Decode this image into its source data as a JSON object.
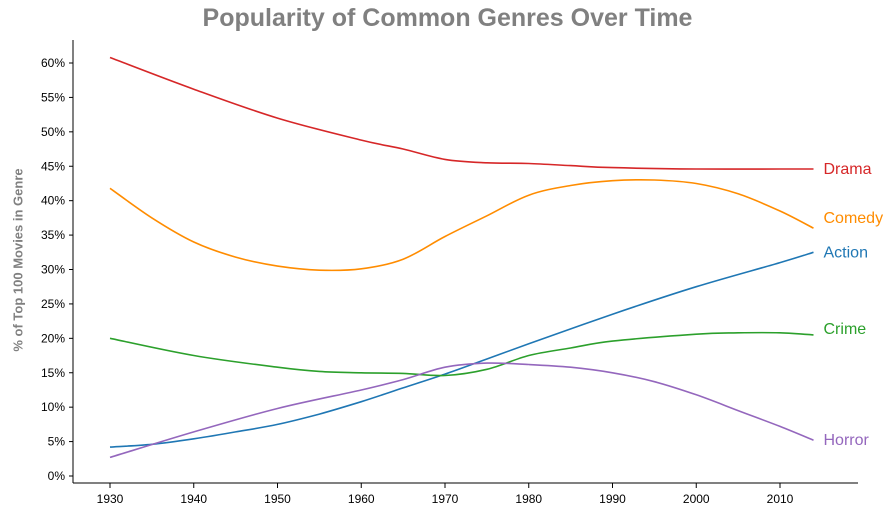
{
  "chart_data": {
    "type": "line",
    "title": "Popularity of Common Genres Over Time",
    "xlabel": "",
    "ylabel": "% of Top 100 Movies in Genre",
    "xlim": [
      1925,
      2020
    ],
    "ylim": [
      0,
      65
    ],
    "x_ticks": [
      1930,
      1940,
      1950,
      1960,
      1970,
      1980,
      1990,
      2000,
      2010
    ],
    "y_ticks": [
      0,
      5,
      10,
      15,
      20,
      25,
      30,
      35,
      40,
      45,
      50,
      55,
      60
    ],
    "y_tick_labels": [
      "0%",
      "5%",
      "10%",
      "15%",
      "20%",
      "25%",
      "30%",
      "35%",
      "40%",
      "45%",
      "50%",
      "55%",
      "60%"
    ],
    "grid": false,
    "legend": "inline labels at right end of each line",
    "series": [
      {
        "name": "Drama",
        "color": "#d62728",
        "x": [
          1930,
          1940,
          1950,
          1960,
          1965,
          1970,
          1975,
          1980,
          1985,
          1990,
          2000,
          2010,
          2014
        ],
        "y": [
          60.8,
          56.2,
          52.0,
          48.8,
          47.5,
          46.0,
          45.5,
          45.4,
          45.1,
          44.8,
          44.6,
          44.6,
          44.6
        ]
      },
      {
        "name": "Comedy",
        "color": "#ff8c00",
        "x": [
          1930,
          1935,
          1940,
          1945,
          1950,
          1955,
          1960,
          1965,
          1970,
          1975,
          1980,
          1985,
          1990,
          1995,
          2000,
          2005,
          2010,
          2014
        ],
        "y": [
          41.8,
          37.5,
          34.0,
          31.8,
          30.5,
          29.9,
          30.1,
          31.5,
          34.8,
          37.8,
          40.8,
          42.2,
          42.9,
          43.0,
          42.5,
          41.0,
          38.5,
          36.0
        ]
      },
      {
        "name": "Action",
        "color": "#1f77b4",
        "x": [
          1930,
          1935,
          1940,
          1945,
          1950,
          1955,
          1960,
          1965,
          1970,
          1975,
          1980,
          1990,
          2000,
          2010,
          2014
        ],
        "y": [
          4.2,
          4.6,
          5.4,
          6.4,
          7.5,
          9.0,
          10.8,
          12.8,
          14.8,
          17.0,
          19.2,
          23.5,
          27.5,
          31.0,
          32.5
        ]
      },
      {
        "name": "Crime",
        "color": "#2ca02c",
        "x": [
          1930,
          1940,
          1950,
          1955,
          1960,
          1965,
          1970,
          1975,
          1980,
          1985,
          1990,
          2000,
          2005,
          2010,
          2014
        ],
        "y": [
          20.0,
          17.5,
          15.8,
          15.2,
          15.0,
          14.9,
          14.6,
          15.5,
          17.5,
          18.6,
          19.6,
          20.6,
          20.8,
          20.8,
          20.5
        ]
      },
      {
        "name": "Horror",
        "color": "#9467bd",
        "x": [
          1930,
          1940,
          1950,
          1960,
          1965,
          1970,
          1975,
          1980,
          1985,
          1990,
          1995,
          2000,
          2005,
          2010,
          2014
        ],
        "y": [
          2.7,
          6.4,
          9.8,
          12.5,
          14.0,
          15.8,
          16.4,
          16.2,
          15.8,
          15.0,
          13.7,
          11.8,
          9.5,
          7.2,
          5.2
        ]
      }
    ]
  }
}
